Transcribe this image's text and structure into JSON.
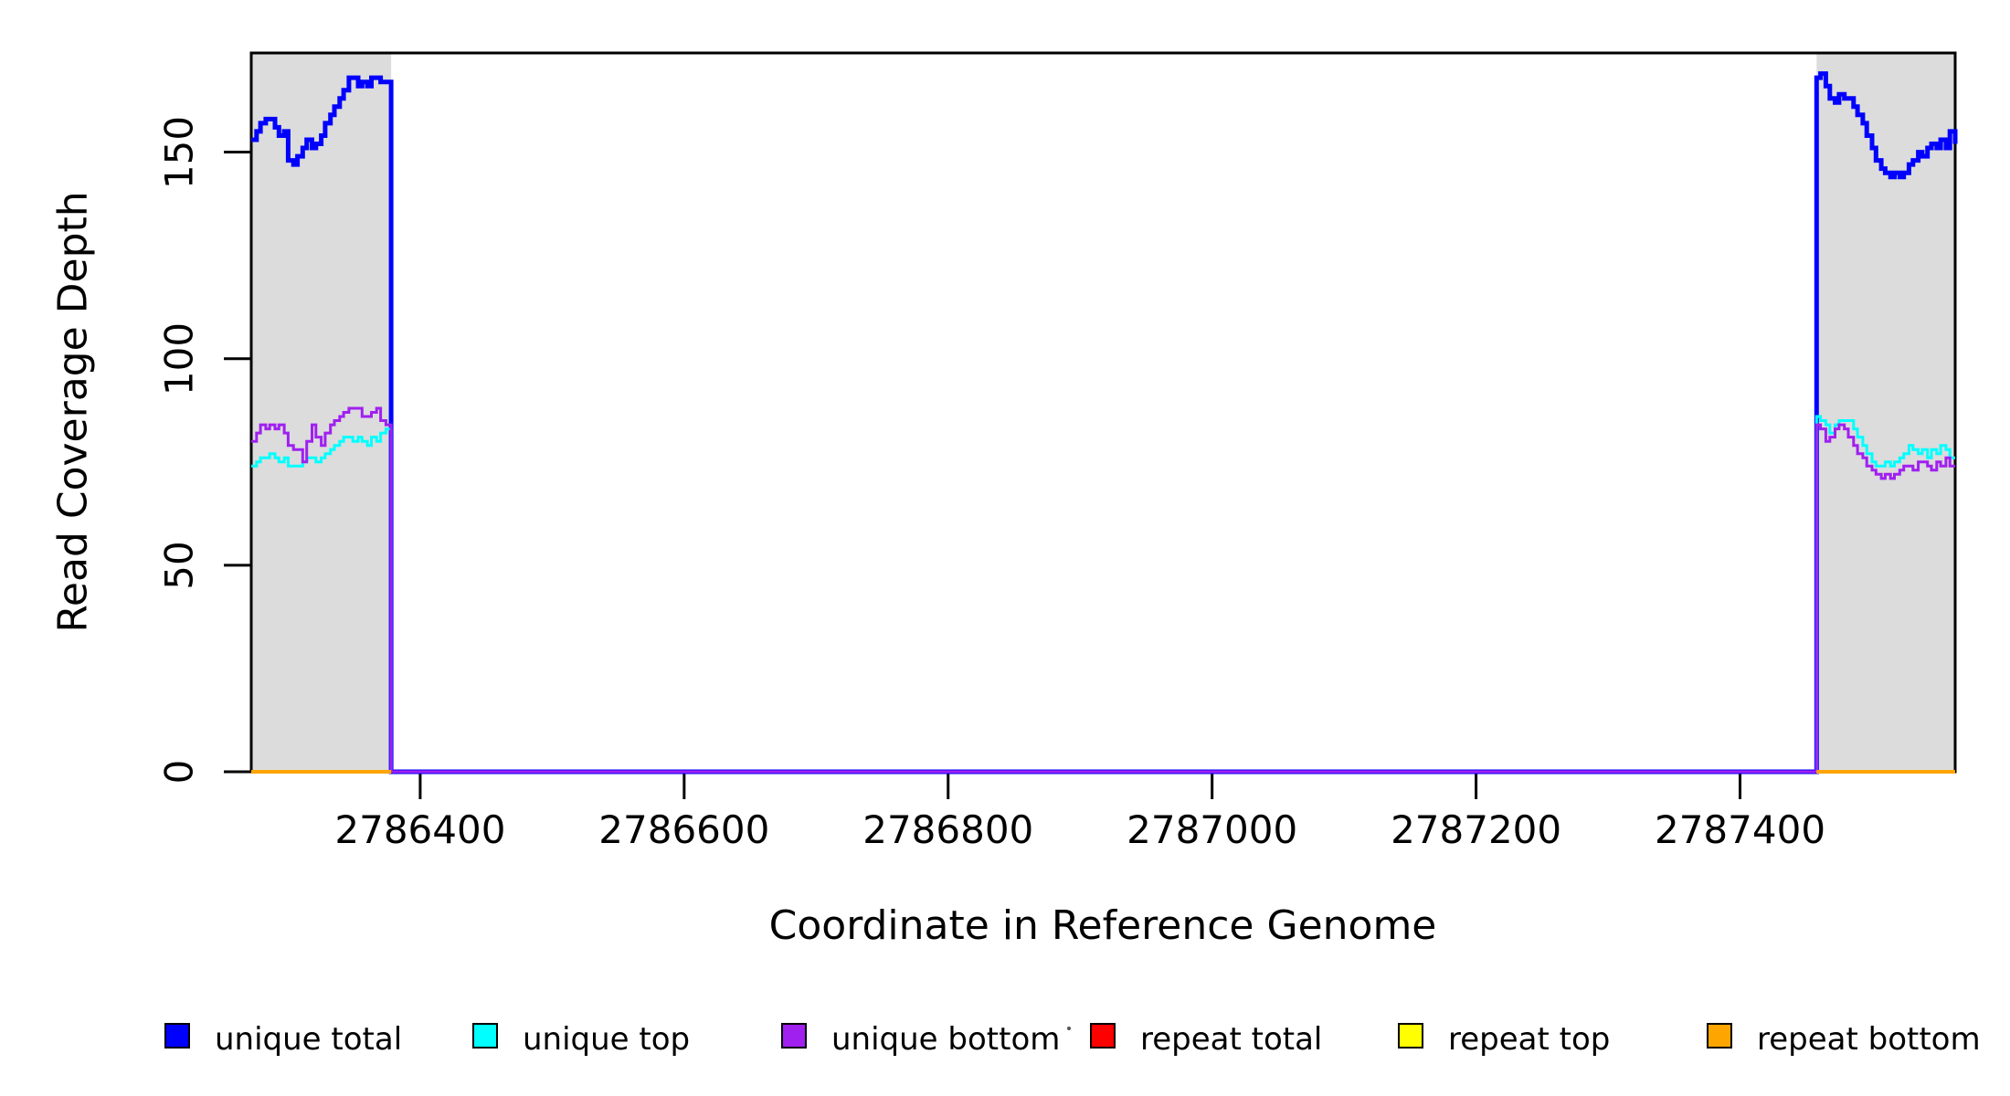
{
  "chart_data": {
    "type": "line",
    "subtype": "step-coverage-plot",
    "title": "",
    "xlabel": "Coordinate in Reference Genome",
    "ylabel": "Read Coverage Depth",
    "xlim": [
      2786272,
      2787563
    ],
    "ylim": [
      0,
      174
    ],
    "x_ticks": [
      2786400,
      2786600,
      2786800,
      2787000,
      2787200,
      2787400
    ],
    "y_ticks": [
      0,
      50,
      100,
      150
    ],
    "grid": false,
    "legend_position": "bottom",
    "plot_box_color": "#000000",
    "shaded_regions": [
      {
        "name": "left-gray-region",
        "x0": 2786272,
        "x1": 2786378,
        "color": "#DCDCDC"
      },
      {
        "name": "right-gray-region",
        "x0": 2787458,
        "x1": 2787563,
        "color": "#DCDCDC"
      }
    ],
    "series": [
      {
        "name": "unique total",
        "color": "#0000FF",
        "line_width": 5,
        "segments": [
          [
            [
              2786272,
              153
            ],
            [
              2786276,
              155
            ],
            [
              2786279,
              157
            ],
            [
              2786283,
              158
            ],
            [
              2786286,
              158
            ],
            [
              2786290,
              156
            ],
            [
              2786293,
              154
            ],
            [
              2786297,
              155
            ],
            [
              2786300,
              148
            ],
            [
              2786304,
              147
            ],
            [
              2786307,
              149
            ],
            [
              2786311,
              151
            ],
            [
              2786314,
              153
            ],
            [
              2786318,
              151
            ],
            [
              2786321,
              152
            ],
            [
              2786325,
              154
            ],
            [
              2786328,
              157
            ],
            [
              2786332,
              159
            ],
            [
              2786335,
              161
            ],
            [
              2786339,
              163
            ],
            [
              2786342,
              165
            ],
            [
              2786346,
              168
            ],
            [
              2786349,
              168
            ],
            [
              2786353,
              166
            ],
            [
              2786356,
              167
            ],
            [
              2786360,
              166
            ],
            [
              2786363,
              168
            ],
            [
              2786367,
              168
            ],
            [
              2786370,
              167
            ],
            [
              2786374,
              167
            ],
            [
              2786378,
              0
            ],
            [
              2787458,
              168
            ],
            [
              2787461,
              169
            ],
            [
              2787465,
              166
            ],
            [
              2787468,
              163
            ],
            [
              2787472,
              162
            ],
            [
              2787475,
              164
            ],
            [
              2787479,
              163
            ],
            [
              2787482,
              163
            ],
            [
              2787486,
              161
            ],
            [
              2787489,
              159
            ],
            [
              2787493,
              157
            ],
            [
              2787496,
              154
            ],
            [
              2787500,
              151
            ],
            [
              2787503,
              148
            ],
            [
              2787507,
              146
            ],
            [
              2787510,
              145
            ],
            [
              2787514,
              144
            ],
            [
              2787517,
              145
            ],
            [
              2787521,
              144
            ],
            [
              2787524,
              145
            ],
            [
              2787528,
              147
            ],
            [
              2787531,
              148
            ],
            [
              2787535,
              150
            ],
            [
              2787538,
              149
            ],
            [
              2787542,
              151
            ],
            [
              2787545,
              152
            ],
            [
              2787549,
              151
            ],
            [
              2787552,
              153
            ],
            [
              2787556,
              151
            ],
            [
              2787559,
              155
            ],
            [
              2787563,
              152
            ]
          ]
        ]
      },
      {
        "name": "unique top",
        "color": "#00FFFF",
        "line_width": 3,
        "segments": [
          [
            [
              2786272,
              74
            ],
            [
              2786276,
              75
            ],
            [
              2786279,
              76
            ],
            [
              2786283,
              76
            ],
            [
              2786286,
              77
            ],
            [
              2786290,
              76
            ],
            [
              2786293,
              75
            ],
            [
              2786297,
              76
            ],
            [
              2786300,
              74
            ],
            [
              2786304,
              74
            ],
            [
              2786307,
              74
            ],
            [
              2786311,
              75
            ],
            [
              2786314,
              76
            ],
            [
              2786318,
              76
            ],
            [
              2786321,
              75
            ],
            [
              2786325,
              76
            ],
            [
              2786328,
              77
            ],
            [
              2786332,
              78
            ],
            [
              2786335,
              79
            ],
            [
              2786339,
              80
            ],
            [
              2786342,
              81
            ],
            [
              2786346,
              81
            ],
            [
              2786349,
              80
            ],
            [
              2786353,
              81
            ],
            [
              2786356,
              80
            ],
            [
              2786360,
              79
            ],
            [
              2786363,
              81
            ],
            [
              2786367,
              80
            ],
            [
              2786370,
              82
            ],
            [
              2786374,
              83
            ],
            [
              2786378,
              0
            ],
            [
              2787458,
              86
            ],
            [
              2787461,
              85
            ],
            [
              2787465,
              84
            ],
            [
              2787468,
              82
            ],
            [
              2787472,
              84
            ],
            [
              2787475,
              85
            ],
            [
              2787479,
              85
            ],
            [
              2787482,
              85
            ],
            [
              2787486,
              83
            ],
            [
              2787489,
              81
            ],
            [
              2787493,
              79
            ],
            [
              2787496,
              77
            ],
            [
              2787500,
              75
            ],
            [
              2787503,
              74
            ],
            [
              2787507,
              74
            ],
            [
              2787510,
              75
            ],
            [
              2787514,
              74
            ],
            [
              2787517,
              75
            ],
            [
              2787521,
              76
            ],
            [
              2787524,
              77
            ],
            [
              2787528,
              79
            ],
            [
              2787531,
              78
            ],
            [
              2787535,
              77
            ],
            [
              2787538,
              78
            ],
            [
              2787542,
              76
            ],
            [
              2787545,
              78
            ],
            [
              2787549,
              77
            ],
            [
              2787552,
              79
            ],
            [
              2787556,
              78
            ],
            [
              2787559,
              76
            ],
            [
              2787563,
              76
            ]
          ]
        ]
      },
      {
        "name": "unique bottom",
        "color": "#A020F0",
        "line_width": 3,
        "segments": [
          [
            [
              2786272,
              80
            ],
            [
              2786276,
              82
            ],
            [
              2786279,
              84
            ],
            [
              2786283,
              83
            ],
            [
              2786286,
              84
            ],
            [
              2786290,
              83
            ],
            [
              2786293,
              84
            ],
            [
              2786297,
              82
            ],
            [
              2786300,
              79
            ],
            [
              2786304,
              78
            ],
            [
              2786307,
              78
            ],
            [
              2786311,
              75
            ],
            [
              2786314,
              80
            ],
            [
              2786318,
              84
            ],
            [
              2786321,
              81
            ],
            [
              2786325,
              79
            ],
            [
              2786328,
              82
            ],
            [
              2786332,
              84
            ],
            [
              2786335,
              85
            ],
            [
              2786339,
              86
            ],
            [
              2786342,
              87
            ],
            [
              2786346,
              88
            ],
            [
              2786349,
              88
            ],
            [
              2786353,
              88
            ],
            [
              2786356,
              86
            ],
            [
              2786360,
              86
            ],
            [
              2786363,
              87
            ],
            [
              2786367,
              88
            ],
            [
              2786370,
              85
            ],
            [
              2786374,
              84
            ],
            [
              2786378,
              0
            ],
            [
              2787458,
              84
            ],
            [
              2787461,
              83
            ],
            [
              2787465,
              80
            ],
            [
              2787468,
              81
            ],
            [
              2787472,
              83
            ],
            [
              2787475,
              84
            ],
            [
              2787479,
              83
            ],
            [
              2787482,
              81
            ],
            [
              2787486,
              79
            ],
            [
              2787489,
              77
            ],
            [
              2787493,
              76
            ],
            [
              2787496,
              74
            ],
            [
              2787500,
              73
            ],
            [
              2787503,
              72
            ],
            [
              2787507,
              71
            ],
            [
              2787510,
              72
            ],
            [
              2787514,
              71
            ],
            [
              2787517,
              72
            ],
            [
              2787521,
              73
            ],
            [
              2787524,
              74
            ],
            [
              2787528,
              74
            ],
            [
              2787531,
              73
            ],
            [
              2787535,
              75
            ],
            [
              2787538,
              75
            ],
            [
              2787542,
              74
            ],
            [
              2787545,
              73
            ],
            [
              2787549,
              75
            ],
            [
              2787552,
              74
            ],
            [
              2787556,
              76
            ],
            [
              2787559,
              74
            ],
            [
              2787563,
              74
            ]
          ]
        ]
      },
      {
        "name": "repeat total",
        "color": "#FF0000",
        "line_width": 3,
        "segments": [
          [
            [
              2786272,
              0
            ],
            [
              2786378,
              0
            ]
          ],
          [
            [
              2787458,
              0
            ],
            [
              2787563,
              0
            ]
          ]
        ]
      },
      {
        "name": "repeat top",
        "color": "#FFFF00",
        "line_width": 3,
        "segments": [
          [
            [
              2786272,
              0
            ],
            [
              2786378,
              0
            ]
          ],
          [
            [
              2787458,
              0
            ],
            [
              2787563,
              0
            ]
          ]
        ]
      },
      {
        "name": "repeat bottom",
        "color": "#FFA500",
        "line_width": 4,
        "segments": [
          [
            [
              2786272,
              0
            ],
            [
              2786378,
              0
            ]
          ],
          [
            [
              2787458,
              0
            ],
            [
              2787563,
              0
            ]
          ]
        ]
      }
    ]
  },
  "axes": {
    "x_title": "Coordinate in Reference Genome",
    "y_title": "Read Coverage Depth",
    "x_tick_labels": [
      "2786400",
      "2786600",
      "2786800",
      "2787000",
      "2787200",
      "2787400"
    ],
    "y_tick_labels": [
      "0",
      "50",
      "100",
      "150"
    ]
  },
  "legend": {
    "items": [
      {
        "label": "unique total",
        "color": "#0000FF"
      },
      {
        "label": "unique top",
        "color": "#00FFFF"
      },
      {
        "label": "unique bottom",
        "color": "#A020F0"
      },
      {
        "label": "repeat total",
        "color": "#FF0000"
      },
      {
        "label": "repeat top",
        "color": "#FFFF00"
      },
      {
        "label": "repeat bottom",
        "color": "#FFA500"
      }
    ]
  }
}
